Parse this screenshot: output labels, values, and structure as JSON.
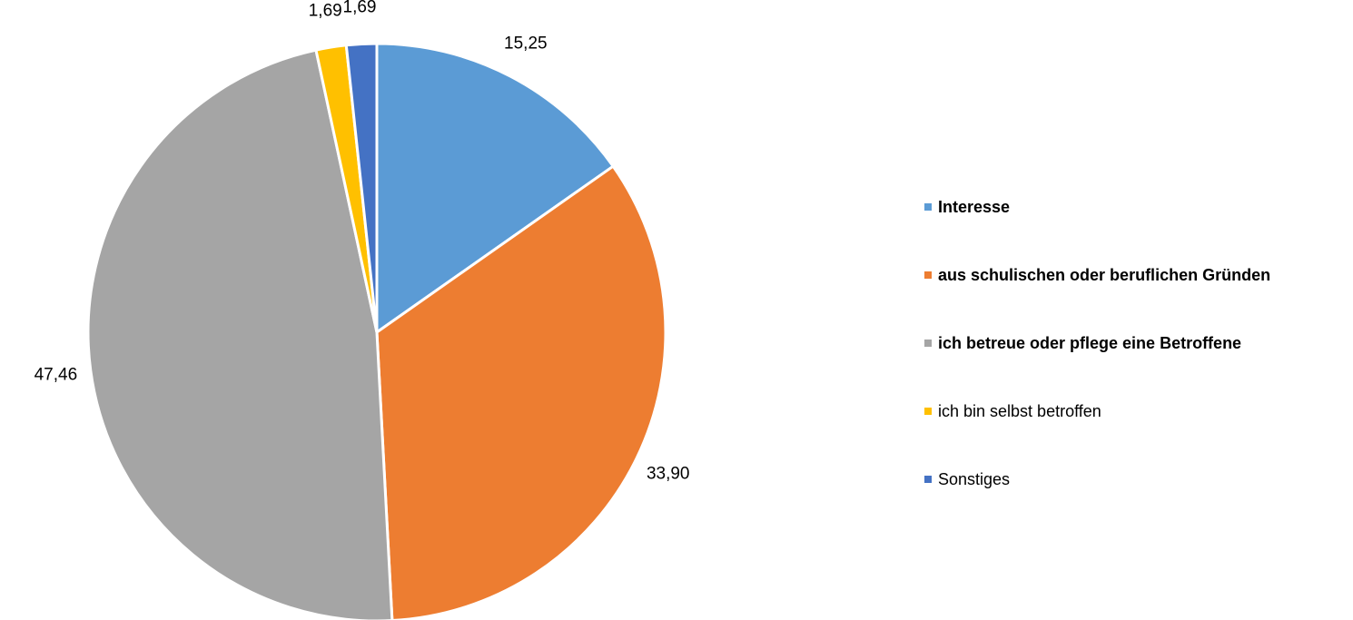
{
  "chart_data": {
    "type": "pie",
    "categories": [
      "Interesse",
      "aus schulischen oder beruflichen Gründen",
      "ich betreue oder pflege eine Betroffene",
      "ich bin selbst betroffen",
      "Sonstiges"
    ],
    "values": [
      15.25,
      33.9,
      47.46,
      1.69,
      1.69
    ],
    "value_labels": [
      "15,25",
      "33,90",
      "47,46",
      "1,69",
      "1,69"
    ],
    "colors": [
      "#5b9bd5",
      "#ed7d31",
      "#a5a5a5",
      "#ffc000",
      "#4472c4"
    ],
    "legend_bold": [
      true,
      true,
      true,
      false,
      false
    ],
    "legend": "right"
  }
}
